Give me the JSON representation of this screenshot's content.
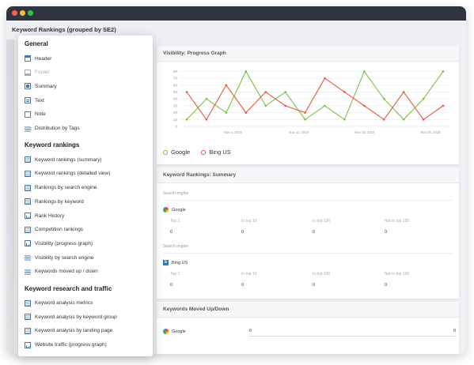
{
  "app": {
    "page_title": "Keyword Rankings (grouped by SE2)"
  },
  "menu": {
    "groups": [
      {
        "title": "General",
        "items": [
          {
            "label": "Header",
            "icon": "header-icon"
          },
          {
            "label": "Footer",
            "icon": "footer-icon",
            "disabled": true
          },
          {
            "label": "Summary",
            "icon": "summary-icon"
          },
          {
            "label": "Text",
            "icon": "text-icon"
          },
          {
            "label": "Note",
            "icon": "note-icon"
          },
          {
            "label": "Distribution by Tags",
            "icon": "list-icon"
          }
        ]
      },
      {
        "title": "Keyword rankings",
        "items": [
          {
            "label": "Keyword rankings (summary)",
            "icon": "table-icon"
          },
          {
            "label": "Keyword rankings (detailed view)",
            "icon": "table-icon"
          },
          {
            "label": "Rankings by search engine",
            "icon": "table-icon"
          },
          {
            "label": "Rankings by keyword",
            "icon": "table-icon"
          },
          {
            "label": "Rank History",
            "icon": "graph-icon"
          },
          {
            "label": "Competition rankings",
            "icon": "table-icon"
          },
          {
            "label": "Visibility (progress graph)",
            "icon": "graph-icon"
          },
          {
            "label": "Visibility by search engine",
            "icon": "list-icon"
          },
          {
            "label": "Keywords moved up / down",
            "icon": "list-icon"
          }
        ]
      },
      {
        "title": "Keyword research and traffic",
        "items": [
          {
            "label": "Keyword analysis metrics",
            "icon": "table-icon"
          },
          {
            "label": "Keyword analysis by keyword group",
            "icon": "table-icon"
          },
          {
            "label": "Keyword analysis by landing page",
            "icon": "table-icon"
          },
          {
            "label": "Website traffic (progress graph)",
            "icon": "graph-icon"
          }
        ]
      }
    ]
  },
  "visibility": {
    "title": "Visibility: Progress Graph",
    "legend": [
      {
        "name": "Google",
        "color": "#7ac143"
      },
      {
        "name": "Bing US",
        "color": "#e8573f"
      }
    ]
  },
  "chart_data": {
    "type": "line",
    "y_ticks": [
      "0",
      "10",
      "20",
      "30",
      "40",
      "50",
      "60",
      "70",
      "80"
    ],
    "ylim": [
      0,
      85
    ],
    "x_tick_labels": [
      "Nov 4, 2019",
      "Nov 11, 2019",
      "Nov 18, 2019",
      "Nov 25, 2019"
    ],
    "series": [
      {
        "name": "Google",
        "color": "#7ac143",
        "values": [
          10,
          40,
          20,
          80,
          30,
          50,
          10,
          30,
          10,
          80,
          40,
          10,
          40,
          80
        ]
      },
      {
        "name": "Bing US",
        "color": "#e8573f",
        "values": [
          50,
          10,
          60,
          20,
          50,
          30,
          20,
          70,
          50,
          30,
          10,
          50,
          10,
          30
        ]
      }
    ],
    "grid": true,
    "legend_position": "bottom-left"
  },
  "summary": {
    "title": "Keyword Rankings: Summary",
    "section_label": "Search engine",
    "engines": [
      {
        "name": "Google",
        "icon": "google-icon"
      },
      {
        "name": "Bing US",
        "icon": "bing-icon"
      }
    ],
    "columns": [
      "Top 1",
      "In top 10",
      "In top 100",
      "Not in top 100"
    ],
    "rows": [
      [
        "0",
        "0",
        "0",
        "0"
      ],
      [
        "0",
        "0",
        "0",
        "0"
      ]
    ]
  },
  "moved": {
    "title": "Keywords Moved Up/Down",
    "engine": "Google",
    "left_value": "0",
    "right_value": "0"
  }
}
